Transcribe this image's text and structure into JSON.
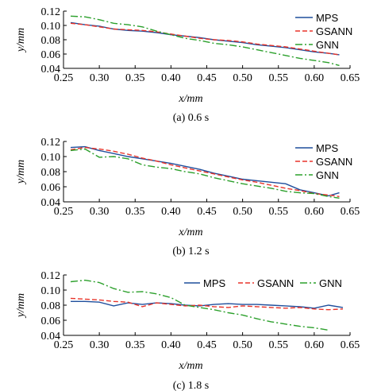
{
  "chart_data": [
    {
      "type": "line",
      "caption": "(a) 0.6 s",
      "xlabel": "x/mm",
      "ylabel": "y/mm",
      "xlim": [
        0.25,
        0.65
      ],
      "ylim": [
        0.04,
        0.12
      ],
      "xticks": [
        "0.25",
        "0.30",
        "0.35",
        "0.40",
        "0.45",
        "0.50",
        "0.55",
        "0.60",
        "0.65"
      ],
      "yticks": [
        "0.04",
        "0.06",
        "0.08",
        "0.10",
        "0.12"
      ],
      "legend": "top-right-vertical",
      "series": [
        {
          "name": "MPS",
          "color": "#1f4e9c",
          "dash": "solid",
          "x": [
            0.26,
            0.28,
            0.3,
            0.32,
            0.34,
            0.36,
            0.38,
            0.4,
            0.42,
            0.44,
            0.46,
            0.48,
            0.5,
            0.52,
            0.54,
            0.56,
            0.58,
            0.6,
            0.62,
            0.635
          ],
          "y": [
            0.104,
            0.101,
            0.099,
            0.095,
            0.093,
            0.092,
            0.09,
            0.087,
            0.085,
            0.083,
            0.08,
            0.078,
            0.076,
            0.073,
            0.071,
            0.069,
            0.066,
            0.063,
            0.061,
            0.059
          ]
        },
        {
          "name": "GSANN",
          "color": "#e8342a",
          "dash": "6,3",
          "x": [
            0.26,
            0.28,
            0.3,
            0.32,
            0.34,
            0.36,
            0.38,
            0.4,
            0.42,
            0.44,
            0.46,
            0.48,
            0.5,
            0.52,
            0.54,
            0.56,
            0.58,
            0.6,
            0.62,
            0.635
          ],
          "y": [
            0.103,
            0.101,
            0.098,
            0.095,
            0.094,
            0.093,
            0.091,
            0.088,
            0.085,
            0.082,
            0.08,
            0.079,
            0.077,
            0.074,
            0.072,
            0.07,
            0.067,
            0.064,
            0.061,
            0.059
          ]
        },
        {
          "name": "GNN",
          "color": "#2ca02c",
          "dash": "9,3,2,3",
          "x": [
            0.26,
            0.28,
            0.3,
            0.32,
            0.34,
            0.36,
            0.38,
            0.4,
            0.42,
            0.44,
            0.46,
            0.48,
            0.5,
            0.52,
            0.54,
            0.56,
            0.58,
            0.6,
            0.62,
            0.635
          ],
          "y": [
            0.113,
            0.112,
            0.108,
            0.103,
            0.101,
            0.098,
            0.092,
            0.087,
            0.082,
            0.079,
            0.075,
            0.073,
            0.07,
            0.066,
            0.062,
            0.058,
            0.054,
            0.051,
            0.048,
            0.044
          ]
        }
      ]
    },
    {
      "type": "line",
      "caption": "(b) 1.2 s",
      "xlabel": "x/mm",
      "ylabel": "y/mm",
      "xlim": [
        0.25,
        0.65
      ],
      "ylim": [
        0.04,
        0.12
      ],
      "xticks": [
        "0.25",
        "0.30",
        "0.35",
        "0.40",
        "0.45",
        "0.50",
        "0.55",
        "0.60",
        "0.65"
      ],
      "yticks": [
        "0.04",
        "0.06",
        "0.08",
        "0.10",
        "0.12"
      ],
      "legend": "top-right-vertical",
      "series": [
        {
          "name": "MPS",
          "color": "#1f4e9c",
          "dash": "solid",
          "x": [
            0.26,
            0.28,
            0.3,
            0.32,
            0.34,
            0.36,
            0.38,
            0.4,
            0.42,
            0.44,
            0.46,
            0.48,
            0.5,
            0.52,
            0.54,
            0.56,
            0.58,
            0.6,
            0.62,
            0.635
          ],
          "y": [
            0.112,
            0.113,
            0.108,
            0.104,
            0.1,
            0.097,
            0.094,
            0.091,
            0.087,
            0.083,
            0.078,
            0.074,
            0.07,
            0.068,
            0.066,
            0.064,
            0.056,
            0.052,
            0.048,
            0.052
          ]
        },
        {
          "name": "GSANN",
          "color": "#e8342a",
          "dash": "6,3",
          "x": [
            0.26,
            0.28,
            0.3,
            0.32,
            0.34,
            0.36,
            0.38,
            0.4,
            0.42,
            0.44,
            0.46,
            0.48,
            0.5,
            0.52,
            0.54,
            0.56,
            0.58,
            0.6,
            0.62,
            0.635
          ],
          "y": [
            0.109,
            0.112,
            0.11,
            0.107,
            0.103,
            0.098,
            0.094,
            0.089,
            0.085,
            0.081,
            0.077,
            0.073,
            0.069,
            0.066,
            0.062,
            0.058,
            0.055,
            0.051,
            0.049,
            0.047
          ]
        },
        {
          "name": "GNN",
          "color": "#2ca02c",
          "dash": "9,3,2,3",
          "x": [
            0.26,
            0.28,
            0.3,
            0.32,
            0.34,
            0.36,
            0.38,
            0.4,
            0.42,
            0.44,
            0.46,
            0.48,
            0.5,
            0.52,
            0.54,
            0.56,
            0.58,
            0.6,
            0.62,
            0.635
          ],
          "y": [
            0.108,
            0.11,
            0.099,
            0.1,
            0.097,
            0.089,
            0.086,
            0.084,
            0.08,
            0.077,
            0.072,
            0.068,
            0.064,
            0.061,
            0.058,
            0.054,
            0.052,
            0.051,
            0.047,
            0.045
          ]
        }
      ]
    },
    {
      "type": "line",
      "caption": "(c) 1.8 s",
      "xlabel": "x/mm",
      "ylabel": "y/mm",
      "xlim": [
        0.25,
        0.65
      ],
      "ylim": [
        0.04,
        0.12
      ],
      "xticks": [
        "0.25",
        "0.30",
        "0.35",
        "0.40",
        "0.45",
        "0.50",
        "0.55",
        "0.60",
        "0.65"
      ],
      "yticks": [
        "0.04",
        "0.06",
        "0.08",
        "0.10",
        "0.12"
      ],
      "legend": "top-right-horizontal",
      "series": [
        {
          "name": "MPS",
          "color": "#1f4e9c",
          "dash": "solid",
          "x": [
            0.26,
            0.28,
            0.3,
            0.32,
            0.34,
            0.36,
            0.38,
            0.4,
            0.42,
            0.44,
            0.46,
            0.48,
            0.5,
            0.52,
            0.54,
            0.56,
            0.58,
            0.6,
            0.62,
            0.64
          ],
          "y": [
            0.085,
            0.085,
            0.084,
            0.079,
            0.083,
            0.081,
            0.083,
            0.082,
            0.08,
            0.079,
            0.081,
            0.082,
            0.081,
            0.081,
            0.08,
            0.079,
            0.078,
            0.076,
            0.08,
            0.077
          ]
        },
        {
          "name": "GSANN",
          "color": "#e8342a",
          "dash": "6,3",
          "x": [
            0.26,
            0.28,
            0.3,
            0.32,
            0.34,
            0.36,
            0.38,
            0.4,
            0.42,
            0.44,
            0.46,
            0.48,
            0.5,
            0.52,
            0.54,
            0.56,
            0.58,
            0.6,
            0.62,
            0.64
          ],
          "y": [
            0.089,
            0.088,
            0.087,
            0.085,
            0.084,
            0.078,
            0.083,
            0.081,
            0.079,
            0.08,
            0.078,
            0.077,
            0.079,
            0.078,
            0.077,
            0.076,
            0.077,
            0.075,
            0.074,
            0.075
          ]
        },
        {
          "name": "GNN",
          "color": "#2ca02c",
          "dash": "9,3,2,3",
          "x": [
            0.26,
            0.28,
            0.3,
            0.32,
            0.34,
            0.36,
            0.38,
            0.4,
            0.42,
            0.44,
            0.46,
            0.48,
            0.5,
            0.52,
            0.54,
            0.56,
            0.58,
            0.6,
            0.62
          ],
          "y": [
            0.111,
            0.113,
            0.11,
            0.102,
            0.097,
            0.098,
            0.095,
            0.09,
            0.08,
            0.077,
            0.074,
            0.07,
            0.067,
            0.062,
            0.058,
            0.055,
            0.052,
            0.05,
            0.047
          ]
        }
      ]
    }
  ]
}
